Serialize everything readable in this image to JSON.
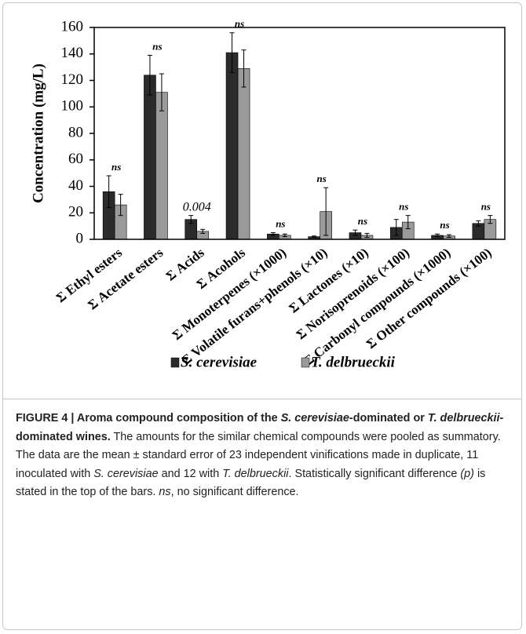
{
  "chart_data": {
    "type": "bar",
    "ylabel": "Concentration (mg/L)",
    "categories": [
      "Σ Ethyl esters",
      "Σ Acetate esters",
      "Σ Acids",
      "Σ Acohols",
      "Σ Monoterpenes (×1000)",
      "Σ Volatile furans+phenols (×10)",
      "Σ Lactones (×10)",
      "Σ Norisoprenoids (×100)",
      "Σ Carbonyl compounds (×1000)",
      "Σ Other compounds  (×100)"
    ],
    "series": [
      {
        "name": "S. cerevisiae",
        "color": "#2b2b2b",
        "values": [
          36,
          124,
          15,
          141,
          4,
          2,
          5,
          9,
          3,
          12
        ],
        "errors": [
          12,
          15,
          3,
          15,
          1,
          0.5,
          2,
          6,
          1,
          2
        ]
      },
      {
        "name": "T. delbrueckii",
        "color": "#9a9a9a",
        "values": [
          26,
          111,
          6,
          129,
          3,
          21,
          3,
          13,
          2.5,
          15
        ],
        "errors": [
          8,
          14,
          1.5,
          14,
          1,
          18,
          1.5,
          5,
          1,
          3
        ]
      }
    ],
    "annotations": [
      "ns",
      "ns",
      "0.004",
      "ns",
      "ns",
      "ns",
      "ns",
      "ns",
      "ns",
      "ns"
    ],
    "ylim": [
      0,
      160
    ],
    "yticks": [
      0,
      20,
      40,
      60,
      80,
      100,
      120,
      140,
      160
    ]
  },
  "caption": {
    "title": [
      "FIGURE 4 | Aroma compound composition of the ",
      "S. cerevisiae",
      "-dominated or ",
      "T. delbrueckii",
      "-dominated wines."
    ],
    "body": [
      " The amounts for the similar chemical compounds were pooled as summatory. The data are the mean ± standard error of 23 independent vinifications made in duplicate, 11 inoculated with ",
      "S. cerevisiae",
      " and 12 with ",
      "T. delbrueckii",
      ". Statistically significant difference ",
      "(p)",
      " is stated in the top of the bars. ",
      "ns",
      ", no significant difference."
    ]
  }
}
